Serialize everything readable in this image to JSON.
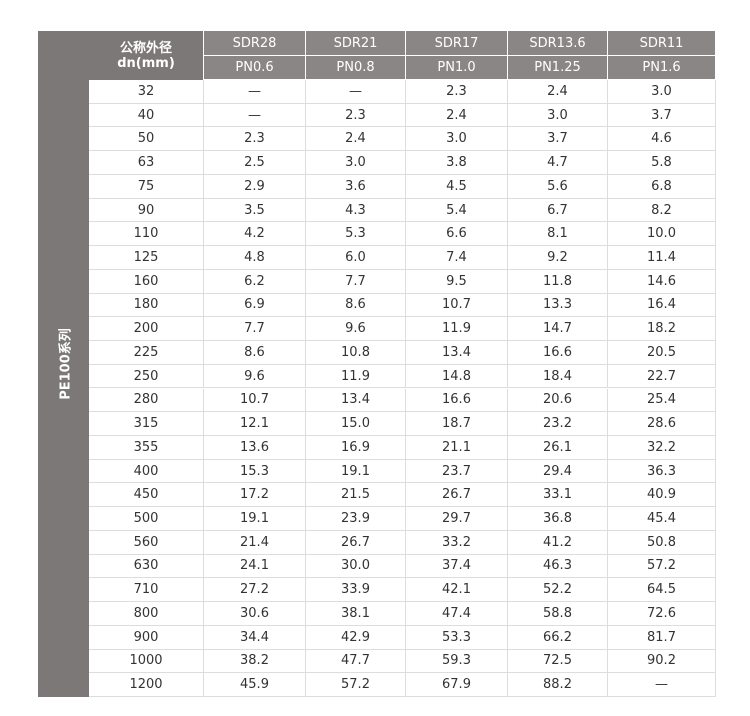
{
  "side_label": "PE100系列",
  "header": {
    "dn_label": [
      "公称外径",
      "dn(mm)"
    ],
    "columns": [
      {
        "sdr": "SDR28",
        "pn": "PN0.6"
      },
      {
        "sdr": "SDR21",
        "pn": "PN0.8"
      },
      {
        "sdr": "SDR17",
        "pn": "PN1.0"
      },
      {
        "sdr": "SDR13.6",
        "pn": "PN1.25"
      },
      {
        "sdr": "SDR11",
        "pn": "PN1.6"
      }
    ]
  },
  "table": {
    "rows": [
      [
        "32",
        "—",
        "—",
        "2.3",
        "2.4",
        "3.0"
      ],
      [
        "40",
        "—",
        "2.3",
        "2.4",
        "3.0",
        "3.7"
      ],
      [
        "50",
        "2.3",
        "2.4",
        "3.0",
        "3.7",
        "4.6"
      ],
      [
        "63",
        "2.5",
        "3.0",
        "3.8",
        "4.7",
        "5.8"
      ],
      [
        "75",
        "2.9",
        "3.6",
        "4.5",
        "5.6",
        "6.8"
      ],
      [
        "90",
        "3.5",
        "4.3",
        "5.4",
        "6.7",
        "8.2"
      ],
      [
        "110",
        "4.2",
        "5.3",
        "6.6",
        "8.1",
        "10.0"
      ],
      [
        "125",
        "4.8",
        "6.0",
        "7.4",
        "9.2",
        "11.4"
      ],
      [
        "160",
        "6.2",
        "7.7",
        "9.5",
        "11.8",
        "14.6"
      ],
      [
        "180",
        "6.9",
        "8.6",
        "10.7",
        "13.3",
        "16.4"
      ],
      [
        "200",
        "7.7",
        "9.6",
        "11.9",
        "14.7",
        "18.2"
      ],
      [
        "225",
        "8.6",
        "10.8",
        "13.4",
        "16.6",
        "20.5"
      ],
      [
        "250",
        "9.6",
        "11.9",
        "14.8",
        "18.4",
        "22.7"
      ],
      [
        "280",
        "10.7",
        "13.4",
        "16.6",
        "20.6",
        "25.4"
      ],
      [
        "315",
        "12.1",
        "15.0",
        "18.7",
        "23.2",
        "28.6"
      ],
      [
        "355",
        "13.6",
        "16.9",
        "21.1",
        "26.1",
        "32.2"
      ],
      [
        "400",
        "15.3",
        "19.1",
        "23.7",
        "29.4",
        "36.3"
      ],
      [
        "450",
        "17.2",
        "21.5",
        "26.7",
        "33.1",
        "40.9"
      ],
      [
        "500",
        "19.1",
        "23.9",
        "29.7",
        "36.8",
        "45.4"
      ],
      [
        "560",
        "21.4",
        "26.7",
        "33.2",
        "41.2",
        "50.8"
      ],
      [
        "630",
        "24.1",
        "30.0",
        "37.4",
        "46.3",
        "57.2"
      ],
      [
        "710",
        "27.2",
        "33.9",
        "42.1",
        "52.2",
        "64.5"
      ],
      [
        "800",
        "30.6",
        "38.1",
        "47.4",
        "58.8",
        "72.6"
      ],
      [
        "900",
        "34.4",
        "42.9",
        "53.3",
        "66.2",
        "81.7"
      ],
      [
        "1000",
        "38.2",
        "47.7",
        "59.3",
        "72.5",
        "90.2"
      ],
      [
        "1200",
        "45.9",
        "57.2",
        "67.9",
        "88.2",
        "—"
      ]
    ]
  }
}
